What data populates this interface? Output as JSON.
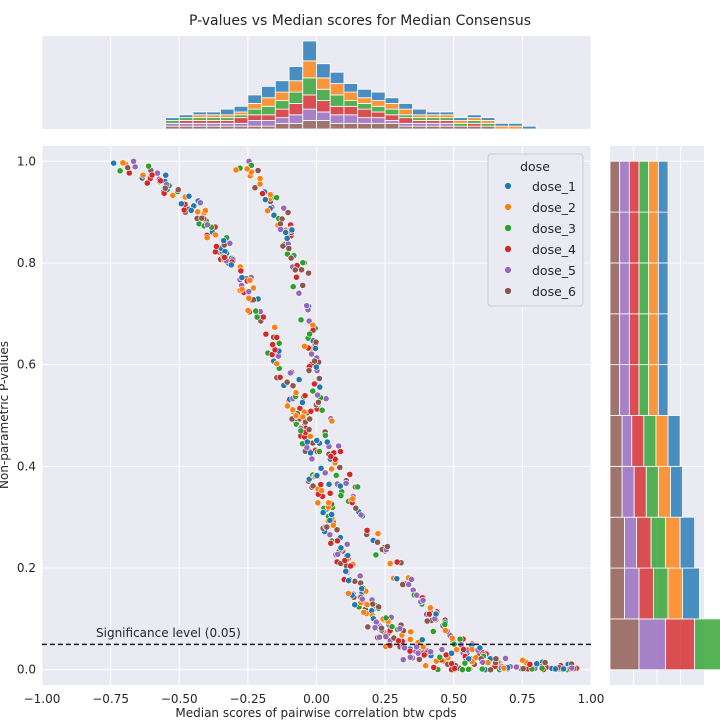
{
  "chart_data": {
    "type": "scatter",
    "title": "P-values vs Median scores for Median Consensus",
    "xlabel": "Median scores of pairwise correlation btw cpds",
    "ylabel": "Non-parametric P-values",
    "xlim": [
      -1.0,
      1.0
    ],
    "ylim": [
      -0.03,
      1.03
    ],
    "xticks": [
      "−1.00",
      "−0.75",
      "−0.50",
      "−0.25",
      "0.00",
      "0.25",
      "0.50",
      "0.75",
      "1.00"
    ],
    "xtick_values": [
      -1.0,
      -0.75,
      -0.5,
      -0.25,
      0.0,
      0.25,
      0.5,
      0.75,
      1.0
    ],
    "yticks": [
      "0.0",
      "0.2",
      "0.4",
      "0.6",
      "0.8",
      "1.0"
    ],
    "ytick_values": [
      0.0,
      0.2,
      0.4,
      0.6,
      0.8,
      1.0
    ],
    "grid": true,
    "background": "#eaeaf2",
    "legend": {
      "title": "dose",
      "placement": "top-right",
      "entries": [
        "dose_1",
        "dose_2",
        "dose_3",
        "dose_4",
        "dose_5",
        "dose_6"
      ]
    },
    "series": [
      {
        "name": "dose_1",
        "color": "#1f77b4"
      },
      {
        "name": "dose_2",
        "color": "#ff7f0e"
      },
      {
        "name": "dose_3",
        "color": "#2ca02c"
      },
      {
        "name": "dose_4",
        "color": "#d62728"
      },
      {
        "name": "dose_5",
        "color": "#9467bd"
      },
      {
        "name": "dose_6",
        "color": "#8c564b"
      }
    ],
    "point_trends": {
      "trend_a": [
        [
          -0.72,
          1.0
        ],
        [
          -0.55,
          0.96
        ],
        [
          -0.42,
          0.9
        ],
        [
          -0.3,
          0.8
        ],
        [
          -0.2,
          0.68
        ],
        [
          -0.12,
          0.58
        ],
        [
          -0.05,
          0.48
        ],
        [
          0.0,
          0.38
        ],
        [
          0.05,
          0.28
        ],
        [
          0.12,
          0.18
        ],
        [
          0.2,
          0.1
        ],
        [
          0.3,
          0.04
        ],
        [
          0.45,
          0.01
        ],
        [
          0.7,
          0.0
        ],
        [
          0.95,
          0.0
        ]
      ],
      "trend_b": [
        [
          -0.28,
          1.0
        ],
        [
          -0.2,
          0.95
        ],
        [
          -0.12,
          0.88
        ],
        [
          -0.06,
          0.78
        ],
        [
          -0.02,
          0.65
        ],
        [
          0.0,
          0.55
        ],
        [
          0.05,
          0.45
        ],
        [
          0.12,
          0.35
        ],
        [
          0.22,
          0.25
        ],
        [
          0.32,
          0.17
        ],
        [
          0.42,
          0.11
        ],
        [
          0.5,
          0.06
        ],
        [
          0.62,
          0.02
        ],
        [
          0.8,
          0.0
        ],
        [
          0.95,
          0.0
        ]
      ],
      "trend_c": [
        [
          -0.45,
          0.9
        ],
        [
          -0.35,
          0.84
        ],
        [
          -0.27,
          0.76
        ],
        [
          -0.18,
          0.67
        ],
        [
          -0.1,
          0.6
        ],
        [
          -0.05,
          0.5
        ],
        [
          0.0,
          0.4
        ],
        [
          0.05,
          0.27
        ],
        [
          0.15,
          0.17
        ],
        [
          0.25,
          0.1
        ],
        [
          0.35,
          0.05
        ],
        [
          0.5,
          0.02
        ],
        [
          0.7,
          0.0
        ]
      ]
    },
    "annotation": {
      "text": "Significance level (0.05)",
      "y": 0.05
    },
    "top_marginal": {
      "type": "stacked-bar histogram",
      "bin_edges": [
        -0.55,
        -0.5,
        -0.45,
        -0.4,
        -0.35,
        -0.3,
        -0.25,
        -0.2,
        -0.15,
        -0.1,
        -0.05,
        0.0,
        0.05,
        0.1,
        0.15,
        0.2,
        0.25,
        0.3,
        0.35,
        0.4,
        0.45,
        0.5,
        0.55,
        0.6,
        0.65,
        0.7,
        0.75,
        0.8,
        0.85,
        0.9,
        0.95
      ],
      "counts": [
        [
          1,
          1,
          1,
          1,
          2,
          2,
          3,
          4,
          4,
          5,
          7,
          5,
          4,
          3,
          3,
          3,
          2,
          2,
          2,
          1,
          1,
          1,
          1,
          1,
          1,
          1,
          1,
          0,
          0,
          0
        ],
        [
          0,
          0,
          1,
          1,
          1,
          1,
          2,
          3,
          3,
          4,
          6,
          4,
          4,
          3,
          2,
          2,
          2,
          2,
          1,
          1,
          1,
          1,
          1,
          1,
          1,
          1,
          0,
          0,
          0,
          0
        ],
        [
          1,
          1,
          1,
          1,
          1,
          1,
          2,
          3,
          3,
          4,
          6,
          4,
          4,
          2,
          2,
          2,
          2,
          1,
          1,
          1,
          1,
          1,
          1,
          1,
          0,
          0,
          0,
          0,
          0,
          0
        ],
        [
          0,
          1,
          1,
          1,
          1,
          2,
          2,
          2,
          3,
          4,
          5,
          4,
          3,
          3,
          3,
          2,
          2,
          2,
          1,
          1,
          1,
          0,
          1,
          0,
          0,
          0,
          0,
          0,
          0,
          0
        ],
        [
          1,
          1,
          1,
          1,
          1,
          1,
          2,
          2,
          2,
          3,
          4,
          3,
          3,
          3,
          2,
          2,
          1,
          1,
          1,
          1,
          1,
          0,
          0,
          0,
          0,
          0,
          0,
          0,
          0,
          0
        ],
        [
          1,
          1,
          1,
          1,
          1,
          1,
          1,
          1,
          2,
          2,
          3,
          3,
          2,
          2,
          2,
          2,
          2,
          1,
          1,
          1,
          1,
          1,
          1,
          1,
          0,
          0,
          0,
          0,
          0,
          0
        ]
      ]
    },
    "right_marginal": {
      "type": "dodged-bar histogram",
      "bin_edges": [
        0.0,
        0.1,
        0.2,
        0.3,
        0.4,
        0.5,
        0.6,
        0.7,
        0.8,
        0.9,
        1.0
      ],
      "counts": [
        [
          13,
          7,
          6,
          5,
          5,
          4,
          4,
          4,
          4,
          4
        ],
        [
          12,
          6,
          6,
          5,
          5,
          4,
          4,
          4,
          4,
          4
        ],
        [
          12,
          6,
          6,
          5,
          5,
          4,
          4,
          4,
          4,
          4
        ],
        [
          12,
          6,
          6,
          5,
          5,
          4,
          4,
          4,
          4,
          4
        ],
        [
          11,
          6,
          5,
          5,
          4,
          4,
          4,
          4,
          4,
          4
        ],
        [
          12,
          6,
          6,
          5,
          5,
          4,
          4,
          4,
          4,
          4
        ]
      ]
    }
  }
}
